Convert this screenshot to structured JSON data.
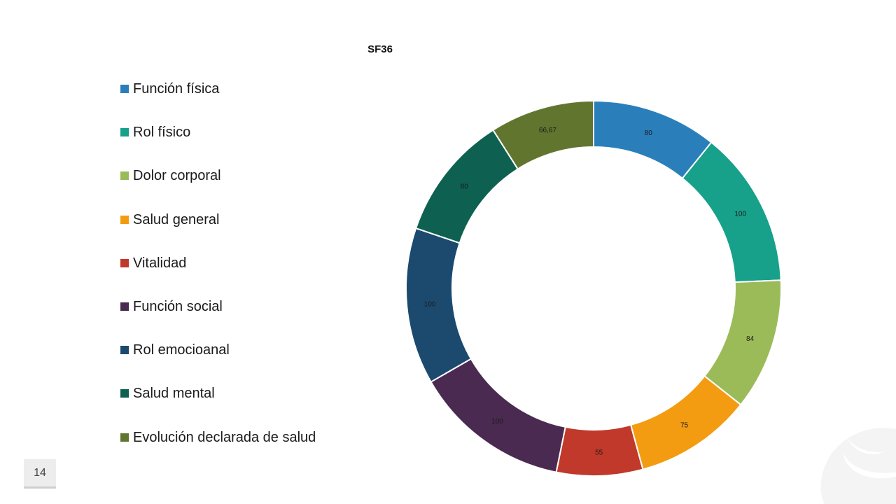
{
  "chart_data": {
    "type": "pie",
    "donut": true,
    "title": "SF36",
    "legend_position": "left",
    "categories": [
      "Función física",
      "Rol físico",
      "Dolor corporal",
      "Salud general",
      "Vitalidad",
      "Función social",
      "Rol emocioanal",
      "Salud mental",
      "Evolución declarada de salud"
    ],
    "values": [
      80,
      100,
      84,
      75,
      55,
      100,
      100,
      80,
      66.67
    ],
    "value_labels": [
      "80",
      "100",
      "84",
      "75",
      "55",
      "100",
      "100",
      "80",
      "66,67"
    ],
    "colors": [
      "#2A7FBB",
      "#17A08A",
      "#9BBB59",
      "#F39C12",
      "#C0392B",
      "#4A2A50",
      "#1B4A6E",
      "#0E6150",
      "#61752F"
    ]
  },
  "slide": {
    "page_number": "14"
  }
}
